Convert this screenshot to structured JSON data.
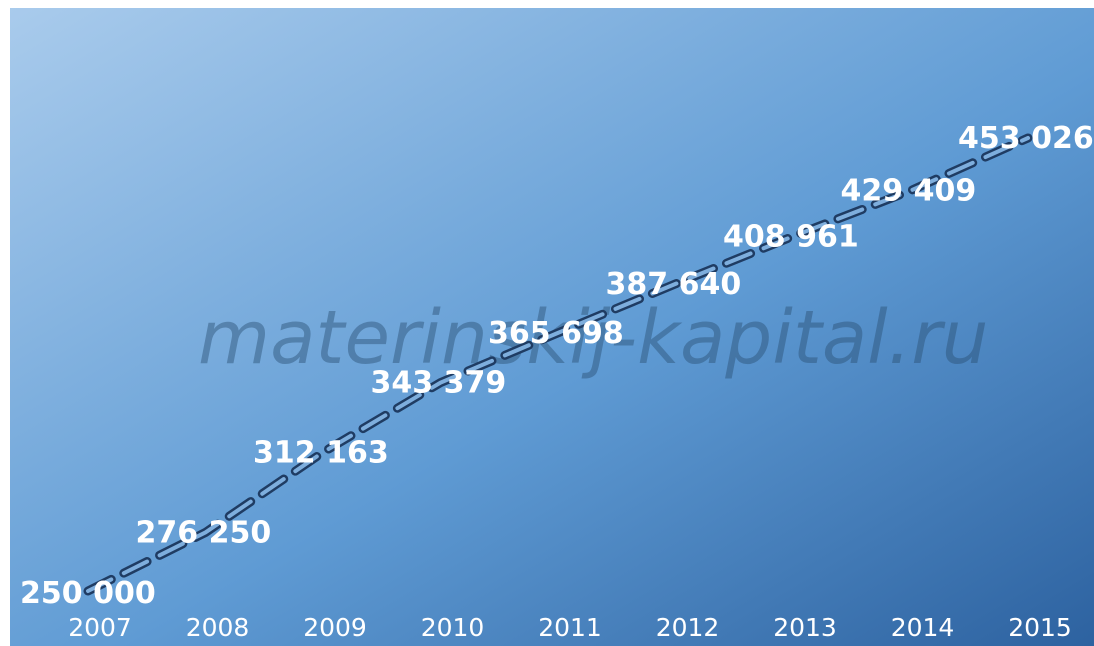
{
  "watermark": "materinskij-kapital.ru",
  "colors": {
    "background_light": "#a9cbec",
    "background_mid": "#5f9bd4",
    "background_dark": "#2d62a0",
    "dash_line": "#1f3c63",
    "text": "#ffffff"
  },
  "chart_data": {
    "type": "line",
    "categories": [
      "2007",
      "2008",
      "2009",
      "2010",
      "2011",
      "2012",
      "2013",
      "2014",
      "2015"
    ],
    "series": [
      {
        "values": [
          250000,
          276250,
          312163,
          343379,
          365698,
          387640,
          408961,
          429409,
          453026
        ],
        "labels": [
          "250 000",
          "276 250",
          "312 163",
          "343 379",
          "365 698",
          "387 640",
          "408 961",
          "429 409",
          "453 026"
        ]
      }
    ],
    "line_style": "dashed",
    "grid": false,
    "legend": "none"
  }
}
